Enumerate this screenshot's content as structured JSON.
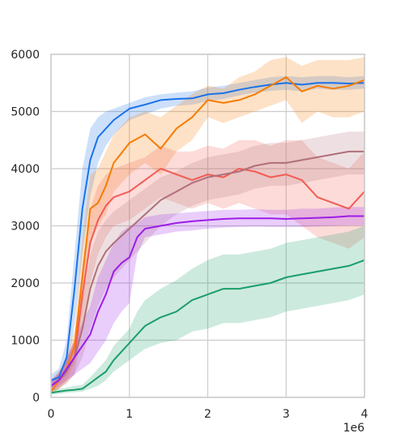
{
  "chart_data": {
    "type": "line",
    "title": "",
    "xlabel": "",
    "ylabel": "",
    "x_offset_label": "1e6",
    "xlim": [
      0,
      4
    ],
    "ylim": [
      0,
      6000
    ],
    "grid": true,
    "x_ticks": [
      {
        "value": 0,
        "label": "0"
      },
      {
        "value": 1,
        "label": "1"
      },
      {
        "value": 2,
        "label": "2"
      },
      {
        "value": 3,
        "label": "3"
      },
      {
        "value": 4,
        "label": "4"
      }
    ],
    "y_ticks": [
      {
        "value": 0,
        "label": "0"
      },
      {
        "value": 1000,
        "label": "1000"
      },
      {
        "value": 2000,
        "label": "2000"
      },
      {
        "value": 3000,
        "label": "3000"
      },
      {
        "value": 4000,
        "label": "4000"
      },
      {
        "value": 5000,
        "label": "5000"
      },
      {
        "value": 6000,
        "label": "6000"
      }
    ],
    "series": [
      {
        "color": "#1a73e8",
        "x": [
          0,
          0.1,
          0.2,
          0.3,
          0.4,
          0.5,
          0.6,
          0.7,
          0.8,
          1.0,
          1.2,
          1.4,
          1.6,
          1.8,
          2.0,
          2.2,
          2.4,
          2.6,
          2.8,
          3.0,
          3.2,
          3.4,
          3.6,
          3.8,
          4.0
        ],
        "y": [
          300,
          350,
          700,
          1900,
          3300,
          4150,
          4550,
          4700,
          4850,
          5050,
          5120,
          5200,
          5220,
          5230,
          5300,
          5320,
          5380,
          5430,
          5470,
          5500,
          5470,
          5500,
          5500,
          5490,
          5500
        ],
        "low": [
          200,
          250,
          400,
          1300,
          2500,
          3500,
          4100,
          4400,
          4600,
          4850,
          4950,
          5050,
          5100,
          5120,
          5180,
          5220,
          5280,
          5330,
          5360,
          5380,
          5350,
          5400,
          5380,
          5380,
          5400
        ],
        "high": [
          400,
          500,
          1000,
          2500,
          4000,
          4700,
          4900,
          5000,
          5050,
          5150,
          5250,
          5300,
          5330,
          5350,
          5420,
          5450,
          5500,
          5550,
          5600,
          5620,
          5600,
          5620,
          5620,
          5600,
          5620
        ]
      },
      {
        "color": "#f57c00",
        "x": [
          0,
          0.1,
          0.2,
          0.3,
          0.4,
          0.5,
          0.6,
          0.7,
          0.8,
          1.0,
          1.2,
          1.4,
          1.6,
          1.8,
          2.0,
          2.2,
          2.4,
          2.6,
          2.8,
          3.0,
          3.2,
          3.4,
          3.6,
          3.8,
          4.0
        ],
        "y": [
          100,
          300,
          500,
          900,
          2100,
          3300,
          3400,
          3700,
          4100,
          4450,
          4600,
          4350,
          4700,
          4900,
          5200,
          5150,
          5200,
          5300,
          5450,
          5600,
          5350,
          5450,
          5400,
          5450,
          5550
        ],
        "low": [
          50,
          150,
          300,
          600,
          1500,
          2700,
          3000,
          3200,
          3600,
          3900,
          4100,
          3900,
          4300,
          4500,
          4900,
          4800,
          4900,
          5000,
          5100,
          5200,
          4800,
          5000,
          4900,
          4900,
          5000
        ],
        "high": [
          200,
          450,
          700,
          1200,
          2800,
          3900,
          4000,
          4300,
          4600,
          4900,
          5000,
          4900,
          5100,
          5300,
          5450,
          5400,
          5600,
          5700,
          5900,
          5950,
          5800,
          5900,
          5900,
          5900,
          5950
        ]
      },
      {
        "color": "#f25c54",
        "x": [
          0,
          0.1,
          0.2,
          0.3,
          0.4,
          0.5,
          0.6,
          0.7,
          0.8,
          1.0,
          1.2,
          1.4,
          1.6,
          1.8,
          2.0,
          2.2,
          2.4,
          2.6,
          2.8,
          3.0,
          3.2,
          3.4,
          3.6,
          3.8,
          4.0
        ],
        "y": [
          200,
          300,
          450,
          700,
          1800,
          2700,
          3100,
          3350,
          3500,
          3600,
          3800,
          4000,
          3900,
          3800,
          3900,
          3850,
          4000,
          3950,
          3850,
          3900,
          3800,
          3500,
          3400,
          3300,
          3600
        ],
        "low": [
          100,
          150,
          250,
          400,
          1200,
          2000,
          2500,
          2800,
          3000,
          3100,
          3300,
          3500,
          3400,
          3300,
          3400,
          3300,
          3400,
          3300,
          3200,
          3200,
          3000,
          2800,
          2700,
          2600,
          2800
        ],
        "high": [
          300,
          450,
          650,
          1000,
          2300,
          3300,
          3700,
          3900,
          4000,
          4100,
          4200,
          4400,
          4300,
          4300,
          4400,
          4350,
          4500,
          4500,
          4400,
          4500,
          4500,
          4200,
          4100,
          4000,
          4300
        ]
      },
      {
        "color": "#b0707a",
        "x": [
          0,
          0.1,
          0.2,
          0.3,
          0.4,
          0.5,
          0.6,
          0.7,
          0.8,
          1.0,
          1.2,
          1.4,
          1.6,
          1.8,
          2.0,
          2.2,
          2.4,
          2.6,
          2.8,
          3.0,
          3.2,
          3.4,
          3.6,
          3.8,
          4.0
        ],
        "y": [
          200,
          300,
          450,
          700,
          1200,
          1900,
          2300,
          2550,
          2700,
          2950,
          3200,
          3450,
          3600,
          3750,
          3850,
          3900,
          3950,
          4050,
          4100,
          4100,
          4150,
          4200,
          4250,
          4300,
          4300
        ],
        "low": [
          100,
          150,
          250,
          400,
          700,
          1200,
          1600,
          1900,
          2100,
          2400,
          2700,
          3000,
          3200,
          3350,
          3450,
          3500,
          3550,
          3650,
          3700,
          3700,
          3750,
          3800,
          3850,
          3900,
          3900
        ],
        "high": [
          300,
          450,
          650,
          1000,
          1700,
          2500,
          2900,
          3100,
          3250,
          3450,
          3650,
          3850,
          3950,
          4100,
          4200,
          4250,
          4300,
          4400,
          4450,
          4450,
          4500,
          4550,
          4600,
          4650,
          4650
        ]
      },
      {
        "color": "#9c1de7",
        "x": [
          0,
          0.1,
          0.2,
          0.3,
          0.4,
          0.5,
          0.6,
          0.7,
          0.8,
          0.9,
          1.0,
          1.1,
          1.2,
          1.4,
          1.6,
          1.8,
          2.0,
          2.2,
          2.4,
          2.6,
          2.8,
          3.0,
          3.2,
          3.4,
          3.6,
          3.8,
          4.0
        ],
        "y": [
          200,
          300,
          500,
          700,
          900,
          1100,
          1500,
          1800,
          2200,
          2350,
          2450,
          2800,
          2950,
          3000,
          3050,
          3080,
          3100,
          3120,
          3130,
          3130,
          3130,
          3120,
          3130,
          3140,
          3150,
          3170,
          3170
        ],
        "low": [
          100,
          200,
          300,
          400,
          500,
          600,
          800,
          1000,
          1300,
          1500,
          1650,
          2500,
          2800,
          2850,
          2900,
          2920,
          2950,
          2970,
          2980,
          2990,
          2980,
          2980,
          2980,
          2990,
          3000,
          3010,
          3010
        ],
        "high": [
          300,
          400,
          700,
          1000,
          1300,
          1600,
          2100,
          2400,
          2700,
          2900,
          3000,
          3050,
          3150,
          3200,
          3220,
          3240,
          3260,
          3280,
          3280,
          3290,
          3280,
          3280,
          3300,
          3300,
          3320,
          3330,
          3330
        ]
      },
      {
        "color": "#1a9e6b",
        "x": [
          0,
          0.1,
          0.2,
          0.3,
          0.4,
          0.5,
          0.6,
          0.7,
          0.8,
          0.9,
          1.0,
          1.1,
          1.2,
          1.4,
          1.6,
          1.8,
          2.0,
          2.2,
          2.4,
          2.6,
          2.8,
          3.0,
          3.2,
          3.4,
          3.6,
          3.8,
          4.0
        ],
        "y": [
          80,
          100,
          120,
          130,
          150,
          250,
          350,
          450,
          650,
          800,
          950,
          1100,
          1250,
          1400,
          1500,
          1700,
          1800,
          1900,
          1900,
          1950,
          2000,
          2100,
          2150,
          2200,
          2250,
          2300,
          2400
        ],
        "low": [
          50,
          60,
          80,
          90,
          100,
          150,
          200,
          300,
          450,
          550,
          650,
          750,
          850,
          950,
          1000,
          1150,
          1200,
          1300,
          1300,
          1350,
          1400,
          1500,
          1550,
          1600,
          1650,
          1700,
          1800
        ],
        "high": [
          150,
          150,
          170,
          200,
          220,
          350,
          500,
          650,
          900,
          1050,
          1200,
          1500,
          1700,
          1900,
          2050,
          2250,
          2400,
          2500,
          2500,
          2550,
          2600,
          2700,
          2750,
          2800,
          2850,
          2900,
          3000
        ]
      }
    ]
  }
}
